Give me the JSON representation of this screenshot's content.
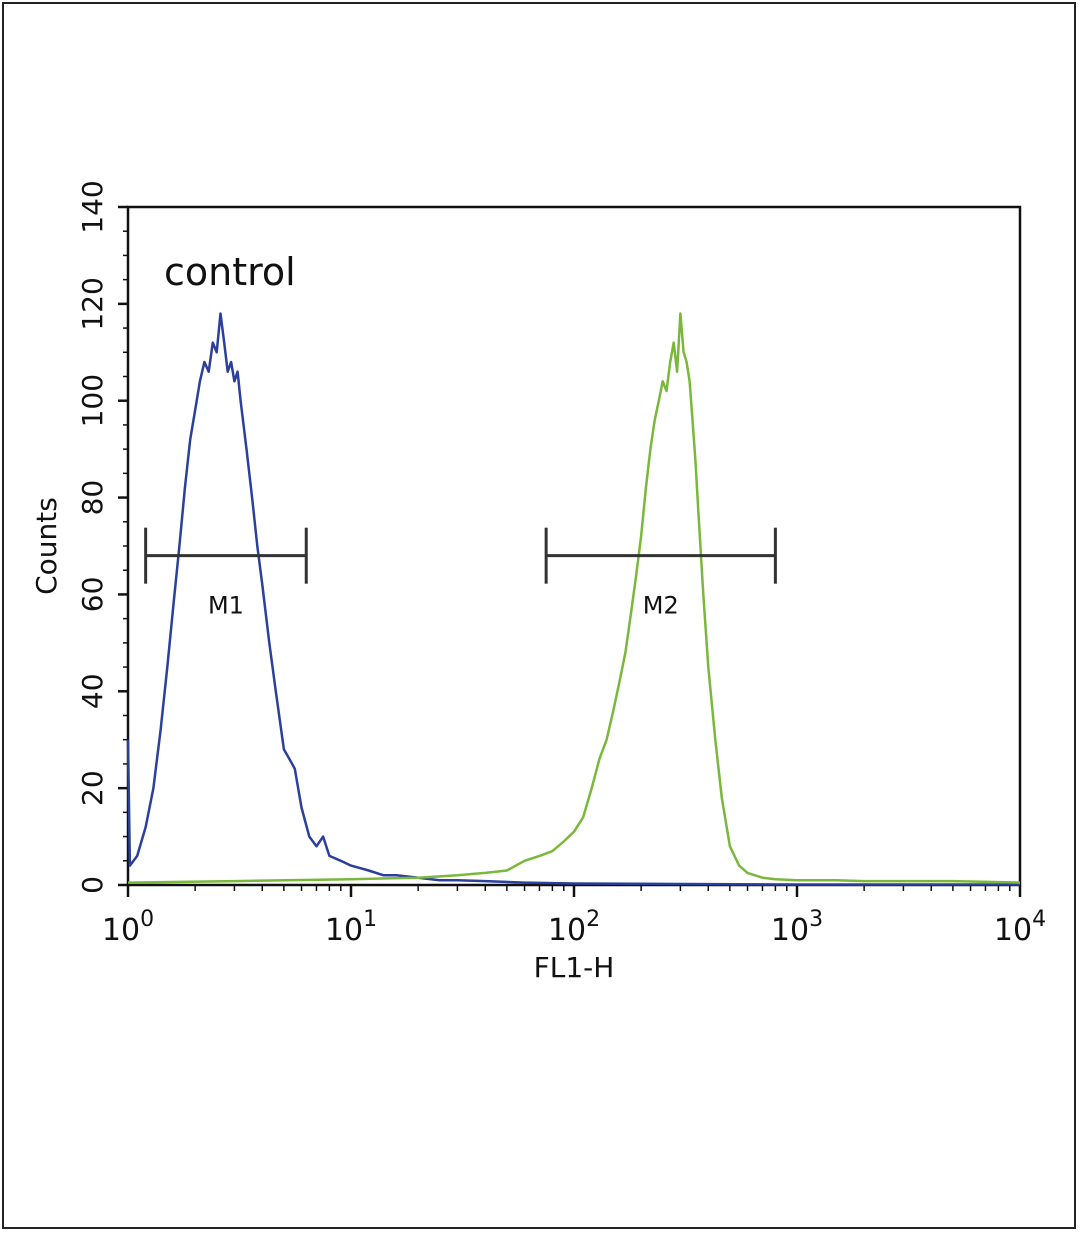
{
  "chart_data": {
    "type": "line",
    "annotation": "control",
    "xlabel": "FL1-H",
    "ylabel": "Counts",
    "xscale": "log",
    "xlim": [
      1,
      10000
    ],
    "ylim": [
      0,
      140
    ],
    "grid": false,
    "x_ticks": [
      {
        "base": "10",
        "exp": "0",
        "value": 1
      },
      {
        "base": "10",
        "exp": "1",
        "value": 10
      },
      {
        "base": "10",
        "exp": "2",
        "value": 100
      },
      {
        "base": "10",
        "exp": "3",
        "value": 1000
      },
      {
        "base": "10",
        "exp": "4",
        "value": 10000
      }
    ],
    "y_ticks": [
      "0",
      "20",
      "40",
      "60",
      "80",
      "100",
      "120",
      "140"
    ],
    "y_tick_values": [
      0,
      20,
      40,
      60,
      80,
      100,
      120,
      140
    ],
    "markers": [
      {
        "label": "M1",
        "x_start": 1.2,
        "x_end": 6.3,
        "y": 68
      },
      {
        "label": "M2",
        "x_start": 75,
        "x_end": 800,
        "y": 68
      }
    ],
    "series": [
      {
        "color": "#2b3f9c",
        "points": [
          [
            1.0,
            30
          ],
          [
            1.02,
            4
          ],
          [
            1.1,
            6
          ],
          [
            1.2,
            12
          ],
          [
            1.3,
            20
          ],
          [
            1.4,
            32
          ],
          [
            1.5,
            45
          ],
          [
            1.6,
            58
          ],
          [
            1.7,
            70
          ],
          [
            1.8,
            82
          ],
          [
            1.9,
            92
          ],
          [
            2.0,
            98
          ],
          [
            2.1,
            104
          ],
          [
            2.2,
            108
          ],
          [
            2.3,
            106
          ],
          [
            2.4,
            112
          ],
          [
            2.5,
            110
          ],
          [
            2.6,
            118
          ],
          [
            2.7,
            112
          ],
          [
            2.8,
            106
          ],
          [
            2.9,
            108
          ],
          [
            3.0,
            104
          ],
          [
            3.1,
            106
          ],
          [
            3.2,
            100
          ],
          [
            3.4,
            90
          ],
          [
            3.6,
            80
          ],
          [
            3.8,
            70
          ],
          [
            4.0,
            62
          ],
          [
            4.3,
            50
          ],
          [
            4.6,
            40
          ],
          [
            5.0,
            28
          ],
          [
            5.3,
            26
          ],
          [
            5.6,
            24
          ],
          [
            6.0,
            16
          ],
          [
            6.5,
            10
          ],
          [
            7.0,
            8
          ],
          [
            7.5,
            10
          ],
          [
            8.0,
            6
          ],
          [
            9.0,
            5
          ],
          [
            10,
            4
          ],
          [
            12,
            3
          ],
          [
            14,
            2
          ],
          [
            16,
            2
          ],
          [
            20,
            1.5
          ],
          [
            25,
            1
          ],
          [
            30,
            1
          ],
          [
            40,
            0.8
          ],
          [
            60,
            0.5
          ],
          [
            100,
            0.3
          ],
          [
            300,
            0.2
          ],
          [
            1000,
            0.1
          ],
          [
            10000,
            0.1
          ]
        ]
      },
      {
        "color": "#7ab83c",
        "points": [
          [
            1.0,
            0.5
          ],
          [
            3,
            0.8
          ],
          [
            10,
            1.2
          ],
          [
            20,
            1.5
          ],
          [
            30,
            2
          ],
          [
            40,
            2.5
          ],
          [
            50,
            3
          ],
          [
            60,
            5
          ],
          [
            70,
            6
          ],
          [
            80,
            7
          ],
          [
            90,
            9
          ],
          [
            100,
            11
          ],
          [
            110,
            14
          ],
          [
            120,
            20
          ],
          [
            130,
            26
          ],
          [
            140,
            30
          ],
          [
            150,
            36
          ],
          [
            160,
            42
          ],
          [
            170,
            48
          ],
          [
            180,
            56
          ],
          [
            190,
            64
          ],
          [
            200,
            72
          ],
          [
            210,
            82
          ],
          [
            220,
            90
          ],
          [
            230,
            96
          ],
          [
            240,
            100
          ],
          [
            250,
            104
          ],
          [
            260,
            102
          ],
          [
            270,
            108
          ],
          [
            280,
            112
          ],
          [
            290,
            106
          ],
          [
            300,
            118
          ],
          [
            310,
            110
          ],
          [
            320,
            108
          ],
          [
            330,
            104
          ],
          [
            340,
            96
          ],
          [
            350,
            88
          ],
          [
            360,
            78
          ],
          [
            380,
            60
          ],
          [
            400,
            45
          ],
          [
            430,
            30
          ],
          [
            460,
            18
          ],
          [
            500,
            8
          ],
          [
            550,
            4
          ],
          [
            600,
            2.5
          ],
          [
            700,
            1.5
          ],
          [
            800,
            1.2
          ],
          [
            1000,
            1
          ],
          [
            1500,
            1
          ],
          [
            2000,
            0.8
          ],
          [
            5000,
            0.8
          ],
          [
            10000,
            0.5
          ]
        ]
      }
    ]
  }
}
